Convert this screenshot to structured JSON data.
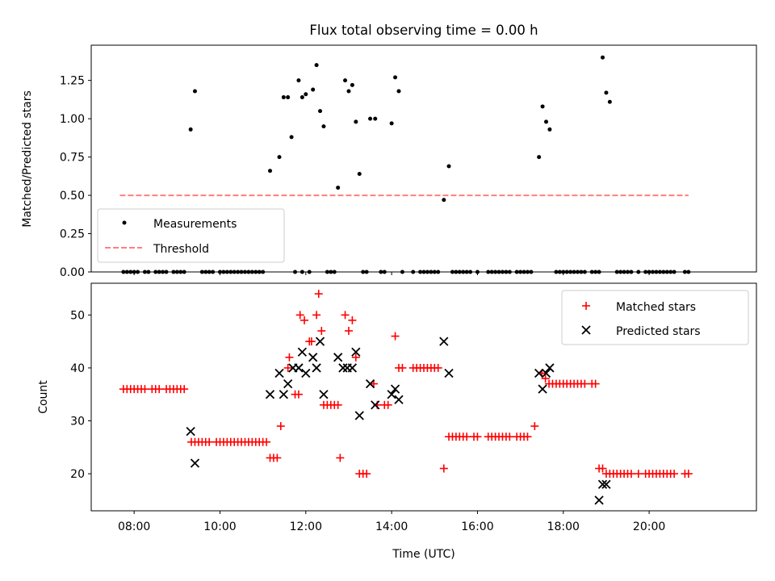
{
  "title": "Flux total observing time = 0.00 h",
  "chart_data": [
    {
      "type": "scatter",
      "ylabel": "Matched/Predicted stars",
      "xlabel": "",
      "xlim": [
        "07:00",
        "22:30"
      ],
      "ylim": [
        0,
        1.48
      ],
      "yticks": [
        "0.00",
        "0.25",
        "0.50",
        "0.75",
        "1.00",
        "1.25"
      ],
      "legend": {
        "placement": "lower-left",
        "entries": [
          "Measurements",
          "Threshold"
        ]
      },
      "threshold": {
        "name": "Threshold",
        "value": 0.5,
        "x_start": "07:40",
        "x_end": "20:55",
        "color": "#ff7f7f"
      },
      "series": [
        {
          "name": "Measurements",
          "color": "#000000",
          "points": [
            [
              "09:19",
              0.93
            ],
            [
              "09:25",
              1.18
            ],
            [
              "11:10",
              0.66
            ],
            [
              "11:23",
              0.75
            ],
            [
              "11:29",
              1.14
            ],
            [
              "11:35",
              1.14
            ],
            [
              "11:40",
              0.88
            ],
            [
              "11:50",
              1.25
            ],
            [
              "11:55",
              1.14
            ],
            [
              "12:00",
              1.16
            ],
            [
              "12:10",
              1.19
            ],
            [
              "12:15",
              1.35
            ],
            [
              "12:20",
              1.05
            ],
            [
              "12:25",
              0.95
            ],
            [
              "12:45",
              0.55
            ],
            [
              "12:55",
              1.25
            ],
            [
              "13:00",
              1.18
            ],
            [
              "13:05",
              1.22
            ],
            [
              "13:10",
              0.98
            ],
            [
              "13:15",
              0.64
            ],
            [
              "13:30",
              1.0
            ],
            [
              "13:37",
              1.0
            ],
            [
              "14:00",
              0.97
            ],
            [
              "14:05",
              1.27
            ],
            [
              "14:10",
              1.18
            ],
            [
              "15:13",
              0.47
            ],
            [
              "15:20",
              0.69
            ],
            [
              "17:26",
              0.75
            ],
            [
              "17:31",
              1.08
            ],
            [
              "17:36",
              0.98
            ],
            [
              "17:41",
              0.93
            ],
            [
              "18:55",
              1.4
            ],
            [
              "19:00",
              1.17
            ],
            [
              "19:05",
              1.11
            ]
          ],
          "zero_times": [
            "07:45",
            "07:50",
            "07:55",
            "08:00",
            "08:05",
            "08:15",
            "08:20",
            "08:30",
            "08:35",
            "08:40",
            "08:45",
            "08:55",
            "09:00",
            "09:05",
            "09:10",
            "09:35",
            "09:40",
            "09:45",
            "09:50",
            "10:00",
            "10:05",
            "10:10",
            "10:15",
            "10:20",
            "10:25",
            "10:30",
            "10:35",
            "10:40",
            "10:45",
            "10:50",
            "10:55",
            "11:00",
            "11:45",
            "11:55",
            "12:05",
            "12:30",
            "12:35",
            "12:40",
            "13:20",
            "13:25",
            "13:45",
            "13:50",
            "14:15",
            "14:30",
            "14:40",
            "14:45",
            "14:50",
            "14:55",
            "15:00",
            "15:05",
            "15:25",
            "15:30",
            "15:35",
            "15:40",
            "15:45",
            "15:50",
            "16:00",
            "16:15",
            "16:20",
            "16:25",
            "16:30",
            "16:35",
            "16:40",
            "16:45",
            "16:55",
            "17:00",
            "17:05",
            "17:10",
            "17:15",
            "17:50",
            "17:55",
            "18:00",
            "18:05",
            "18:10",
            "18:15",
            "18:20",
            "18:25",
            "18:30",
            "18:40",
            "18:45",
            "18:50",
            "19:15",
            "19:20",
            "19:25",
            "19:30",
            "19:35",
            "19:45",
            "19:55",
            "20:00",
            "20:05",
            "20:10",
            "20:15",
            "20:20",
            "20:25",
            "20:30",
            "20:35",
            "20:50",
            "20:55"
          ]
        }
      ]
    },
    {
      "type": "scatter",
      "xlabel": "Time (UTC)",
      "ylabel": "Count",
      "xlim": [
        "07:00",
        "22:30"
      ],
      "ylim": [
        13,
        56
      ],
      "xticks": [
        "08:00",
        "10:00",
        "12:00",
        "14:00",
        "16:00",
        "18:00",
        "20:00"
      ],
      "yticks": [
        20,
        30,
        40,
        50
      ],
      "legend": {
        "placement": "upper-right",
        "entries": [
          "Matched stars",
          "Predicted stars"
        ]
      },
      "series": [
        {
          "name": "Matched stars",
          "marker": "plus",
          "color": "#ff0000",
          "points": [
            [
              "07:45",
              36
            ],
            [
              "07:50",
              36
            ],
            [
              "07:55",
              36
            ],
            [
              "08:00",
              36
            ],
            [
              "08:05",
              36
            ],
            [
              "08:10",
              36
            ],
            [
              "08:15",
              36
            ],
            [
              "08:25",
              36
            ],
            [
              "08:30",
              36
            ],
            [
              "08:35",
              36
            ],
            [
              "08:45",
              36
            ],
            [
              "08:50",
              36
            ],
            [
              "08:55",
              36
            ],
            [
              "09:00",
              36
            ],
            [
              "09:05",
              36
            ],
            [
              "09:10",
              36
            ],
            [
              "09:20",
              26
            ],
            [
              "09:25",
              26
            ],
            [
              "09:30",
              26
            ],
            [
              "09:35",
              26
            ],
            [
              "09:40",
              26
            ],
            [
              "09:45",
              26
            ],
            [
              "09:55",
              26
            ],
            [
              "10:00",
              26
            ],
            [
              "10:05",
              26
            ],
            [
              "10:10",
              26
            ],
            [
              "10:15",
              26
            ],
            [
              "10:20",
              26
            ],
            [
              "10:25",
              26
            ],
            [
              "10:30",
              26
            ],
            [
              "10:35",
              26
            ],
            [
              "10:40",
              26
            ],
            [
              "10:45",
              26
            ],
            [
              "10:50",
              26
            ],
            [
              "10:55",
              26
            ],
            [
              "11:00",
              26
            ],
            [
              "11:05",
              26
            ],
            [
              "11:10",
              23
            ],
            [
              "11:15",
              23
            ],
            [
              "11:20",
              23
            ],
            [
              "11:25",
              29
            ],
            [
              "11:35",
              40
            ],
            [
              "11:37",
              42
            ],
            [
              "11:45",
              35
            ],
            [
              "11:50",
              35
            ],
            [
              "11:52",
              50
            ],
            [
              "11:58",
              49
            ],
            [
              "12:05",
              45
            ],
            [
              "12:08",
              45
            ],
            [
              "12:15",
              50
            ],
            [
              "12:18",
              54
            ],
            [
              "12:22",
              47
            ],
            [
              "12:25",
              33
            ],
            [
              "12:30",
              33
            ],
            [
              "12:35",
              33
            ],
            [
              "12:40",
              33
            ],
            [
              "12:45",
              33
            ],
            [
              "12:48",
              23
            ],
            [
              "12:55",
              50
            ],
            [
              "13:00",
              47
            ],
            [
              "13:05",
              49
            ],
            [
              "13:10",
              42
            ],
            [
              "13:15",
              20
            ],
            [
              "13:20",
              20
            ],
            [
              "13:25",
              20
            ],
            [
              "13:35",
              37
            ],
            [
              "13:40",
              33
            ],
            [
              "13:50",
              33
            ],
            [
              "13:55",
              33
            ],
            [
              "14:05",
              46
            ],
            [
              "14:10",
              40
            ],
            [
              "14:15",
              40
            ],
            [
              "14:30",
              40
            ],
            [
              "14:35",
              40
            ],
            [
              "14:40",
              40
            ],
            [
              "14:45",
              40
            ],
            [
              "14:50",
              40
            ],
            [
              "14:55",
              40
            ],
            [
              "15:00",
              40
            ],
            [
              "15:05",
              40
            ],
            [
              "15:13",
              21
            ],
            [
              "15:20",
              27
            ],
            [
              "15:25",
              27
            ],
            [
              "15:30",
              27
            ],
            [
              "15:35",
              27
            ],
            [
              "15:40",
              27
            ],
            [
              "15:45",
              27
            ],
            [
              "15:55",
              27
            ],
            [
              "16:00",
              27
            ],
            [
              "16:15",
              27
            ],
            [
              "16:20",
              27
            ],
            [
              "16:25",
              27
            ],
            [
              "16:30",
              27
            ],
            [
              "16:35",
              27
            ],
            [
              "16:40",
              27
            ],
            [
              "16:45",
              27
            ],
            [
              "16:55",
              27
            ],
            [
              "17:00",
              27
            ],
            [
              "17:05",
              27
            ],
            [
              "17:10",
              27
            ],
            [
              "17:20",
              29
            ],
            [
              "17:30",
              39
            ],
            [
              "17:35",
              38
            ],
            [
              "17:40",
              37
            ],
            [
              "17:45",
              37
            ],
            [
              "17:50",
              37
            ],
            [
              "17:55",
              37
            ],
            [
              "18:00",
              37
            ],
            [
              "18:05",
              37
            ],
            [
              "18:10",
              37
            ],
            [
              "18:15",
              37
            ],
            [
              "18:20",
              37
            ],
            [
              "18:25",
              37
            ],
            [
              "18:30",
              37
            ],
            [
              "18:40",
              37
            ],
            [
              "18:45",
              37
            ],
            [
              "18:50",
              21
            ],
            [
              "18:55",
              21
            ],
            [
              "19:00",
              20
            ],
            [
              "19:05",
              20
            ],
            [
              "19:10",
              20
            ],
            [
              "19:15",
              20
            ],
            [
              "19:20",
              20
            ],
            [
              "19:25",
              20
            ],
            [
              "19:30",
              20
            ],
            [
              "19:35",
              20
            ],
            [
              "19:45",
              20
            ],
            [
              "19:55",
              20
            ],
            [
              "20:00",
              20
            ],
            [
              "20:05",
              20
            ],
            [
              "20:10",
              20
            ],
            [
              "20:15",
              20
            ],
            [
              "20:20",
              20
            ],
            [
              "20:25",
              20
            ],
            [
              "20:30",
              20
            ],
            [
              "20:35",
              20
            ],
            [
              "20:50",
              20
            ],
            [
              "20:55",
              20
            ]
          ]
        },
        {
          "name": "Predicted stars",
          "marker": "x",
          "color": "#000000",
          "points": [
            [
              "09:19",
              28
            ],
            [
              "09:25",
              22
            ],
            [
              "11:10",
              35
            ],
            [
              "11:23",
              39
            ],
            [
              "11:29",
              35
            ],
            [
              "11:35",
              37
            ],
            [
              "11:42",
              40
            ],
            [
              "11:50",
              40
            ],
            [
              "11:55",
              43
            ],
            [
              "12:00",
              39
            ],
            [
              "12:10",
              42
            ],
            [
              "12:15",
              40
            ],
            [
              "12:20",
              45
            ],
            [
              "12:25",
              35
            ],
            [
              "12:45",
              42
            ],
            [
              "12:52",
              40
            ],
            [
              "12:58",
              40
            ],
            [
              "13:05",
              40
            ],
            [
              "13:10",
              43
            ],
            [
              "13:15",
              31
            ],
            [
              "13:30",
              37
            ],
            [
              "13:37",
              33
            ],
            [
              "14:00",
              35
            ],
            [
              "14:05",
              36
            ],
            [
              "14:10",
              34
            ],
            [
              "15:13",
              45
            ],
            [
              "15:20",
              39
            ],
            [
              "17:26",
              39
            ],
            [
              "17:31",
              36
            ],
            [
              "17:36",
              39
            ],
            [
              "17:41",
              40
            ],
            [
              "18:50",
              15
            ],
            [
              "18:55",
              18
            ],
            [
              "19:00",
              18
            ]
          ]
        }
      ]
    }
  ]
}
